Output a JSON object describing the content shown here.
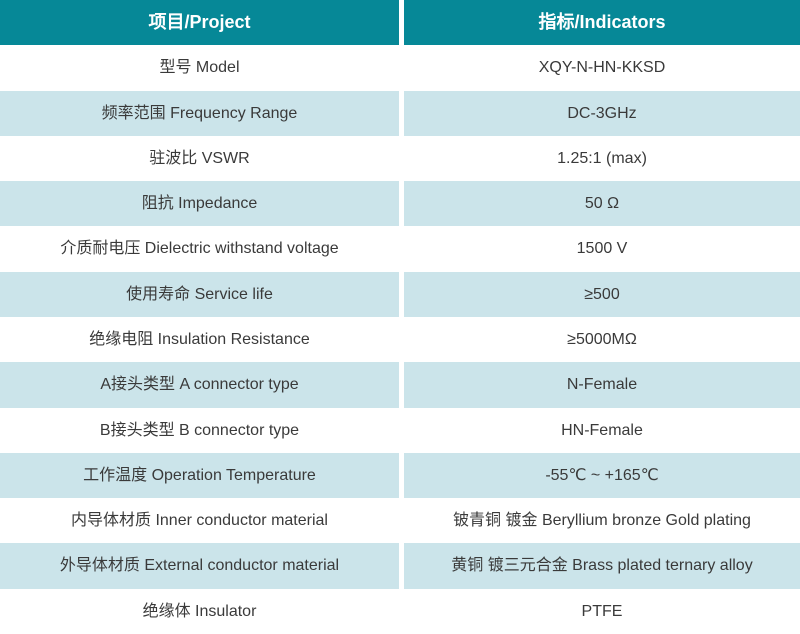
{
  "colors": {
    "header_bg": "#068897",
    "header_text": "#ffffff",
    "row_alt_bg": "#cbe4ea",
    "body_text": "#3a3a3a"
  },
  "table": {
    "header": {
      "project": "项目/Project",
      "indicators": "指标/Indicators"
    },
    "rows": [
      {
        "project": "型号 Model",
        "indicator": "XQY-N-HN-KKSD"
      },
      {
        "project": "频率范围 Frequency Range",
        "indicator": "DC-3GHz"
      },
      {
        "project": "驻波比 VSWR",
        "indicator": "1.25:1 (max)"
      },
      {
        "project": "阻抗 Impedance",
        "indicator": "50 Ω"
      },
      {
        "project": "介质耐电压 Dielectric withstand voltage",
        "indicator": "1500 V"
      },
      {
        "project": "使用寿命 Service life",
        "indicator": "≥500"
      },
      {
        "project": "绝缘电阻 Insulation Resistance",
        "indicator": "≥5000MΩ"
      },
      {
        "project": "A接头类型 A connector type",
        "indicator": "N-Female"
      },
      {
        "project": "B接头类型 B connector type",
        "indicator": "HN-Female"
      },
      {
        "project": "工作温度 Operation Temperature",
        "indicator": "-55℃ ~ +165℃"
      },
      {
        "project": "内导体材质 Inner conductor material",
        "indicator": "铍青铜 镀金 Beryllium bronze Gold plating"
      },
      {
        "project": "外导体材质 External conductor material",
        "indicator": "黄铜 镀三元合金 Brass plated ternary alloy"
      },
      {
        "project": "绝缘体 Insulator",
        "indicator": "PTFE"
      }
    ]
  }
}
